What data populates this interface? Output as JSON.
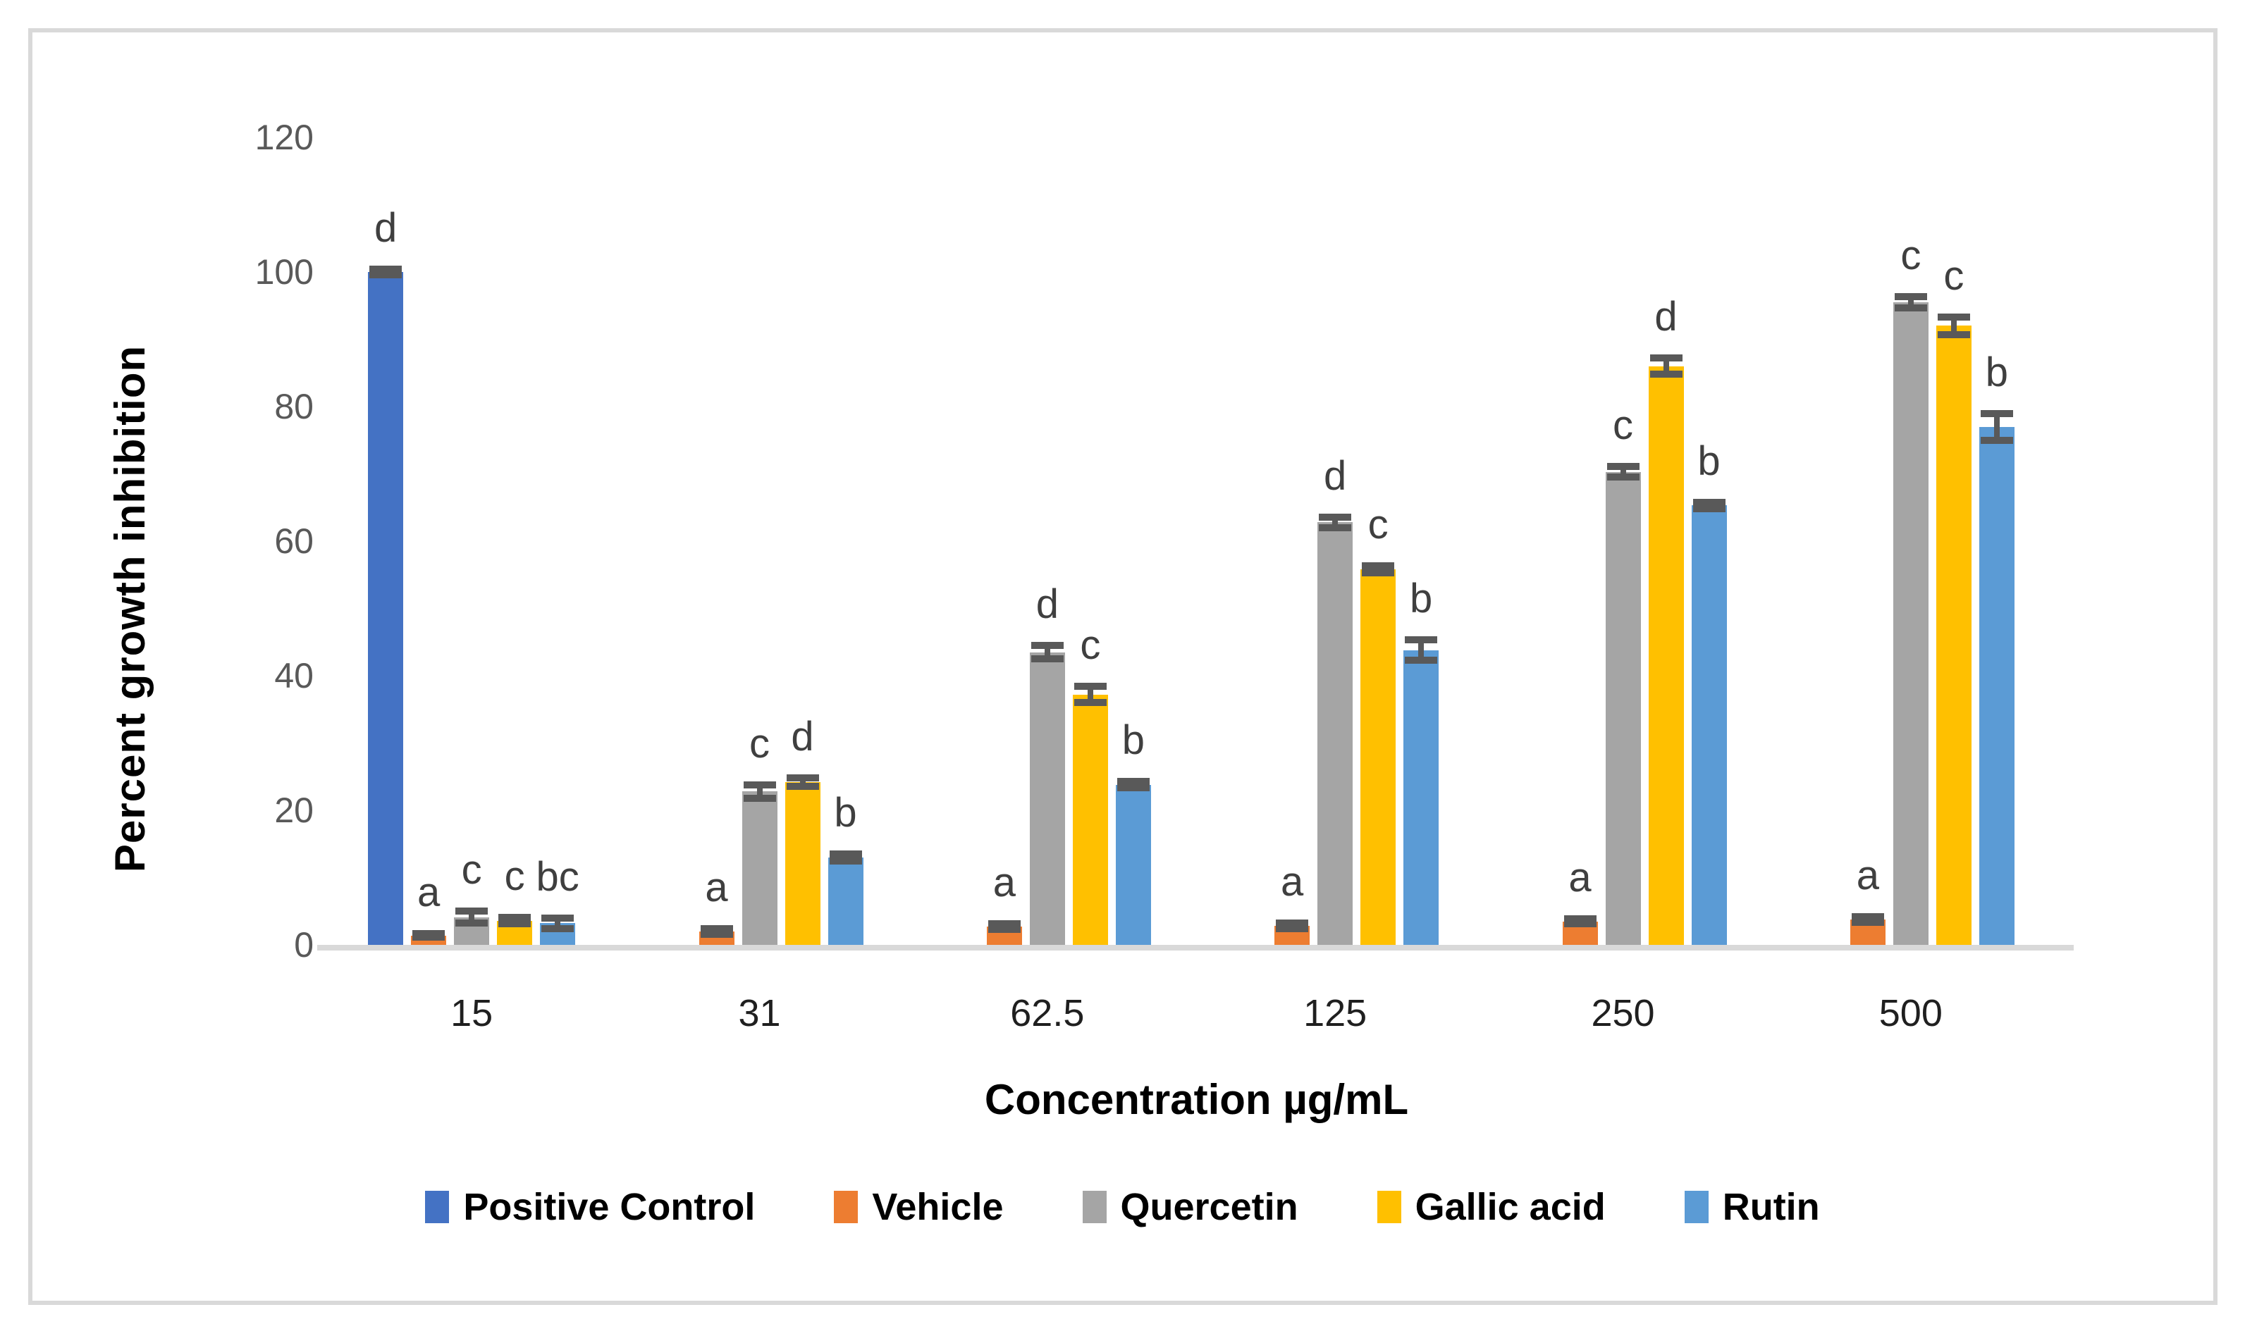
{
  "chart_data": {
    "type": "bar",
    "title": "",
    "xlabel": "Concentration µg/mL",
    "ylabel": "Percent growth inhibition",
    "categories": [
      "15",
      "31",
      "62.5",
      "125",
      "250",
      "500"
    ],
    "ylim": [
      0,
      120
    ],
    "yticks": [
      0,
      20,
      40,
      60,
      80,
      100,
      120
    ],
    "grid": false,
    "legend_position": "bottom",
    "axis_line_color": "#D9D9D9",
    "error_bar_color": "#595959",
    "significance_label_color": "#3F3F3F",
    "series": [
      {
        "name": "Positive Control",
        "color": "#4472C4",
        "values": [
          100,
          null,
          null,
          null,
          null,
          null
        ],
        "errors": [
          0.4,
          null,
          null,
          null,
          null,
          null
        ],
        "letters": [
          "d",
          null,
          null,
          null,
          null,
          null
        ]
      },
      {
        "name": "Vehicle",
        "color": "#ED7D31",
        "values": [
          1.4,
          2.0,
          2.7,
          2.8,
          3.5,
          3.8
        ],
        "errors": [
          0.3,
          0.4,
          0.4,
          0.4,
          0.4,
          0.4
        ],
        "letters": [
          "a",
          "a",
          "a",
          "a",
          "a",
          "a"
        ]
      },
      {
        "name": "Quercetin",
        "color": "#A5A5A5",
        "values": [
          4.1,
          22.8,
          43.5,
          62.8,
          70.3,
          95.5
        ],
        "errors": [
          0.9,
          1.0,
          1.0,
          0.8,
          0.8,
          0.8
        ],
        "letters": [
          "c",
          "c",
          "d",
          "d",
          "c",
          "c"
        ]
      },
      {
        "name": "Gallic acid",
        "color": "#FFC000",
        "values": [
          3.6,
          24.2,
          37.2,
          55.8,
          86.0,
          92.0
        ],
        "errors": [
          0.5,
          0.6,
          1.2,
          0.5,
          1.2,
          1.3
        ],
        "letters": [
          "c",
          "d",
          "c",
          "c",
          "d",
          "c"
        ]
      },
      {
        "name": "Rutin",
        "color": "#5B9BD5",
        "values": [
          3.2,
          13.0,
          23.8,
          43.8,
          65.3,
          77.0
        ],
        "errors": [
          0.8,
          0.5,
          0.5,
          1.5,
          0.5,
          2.0
        ],
        "letters": [
          "bc",
          "b",
          "b",
          "b",
          "b",
          "b"
        ]
      }
    ]
  }
}
